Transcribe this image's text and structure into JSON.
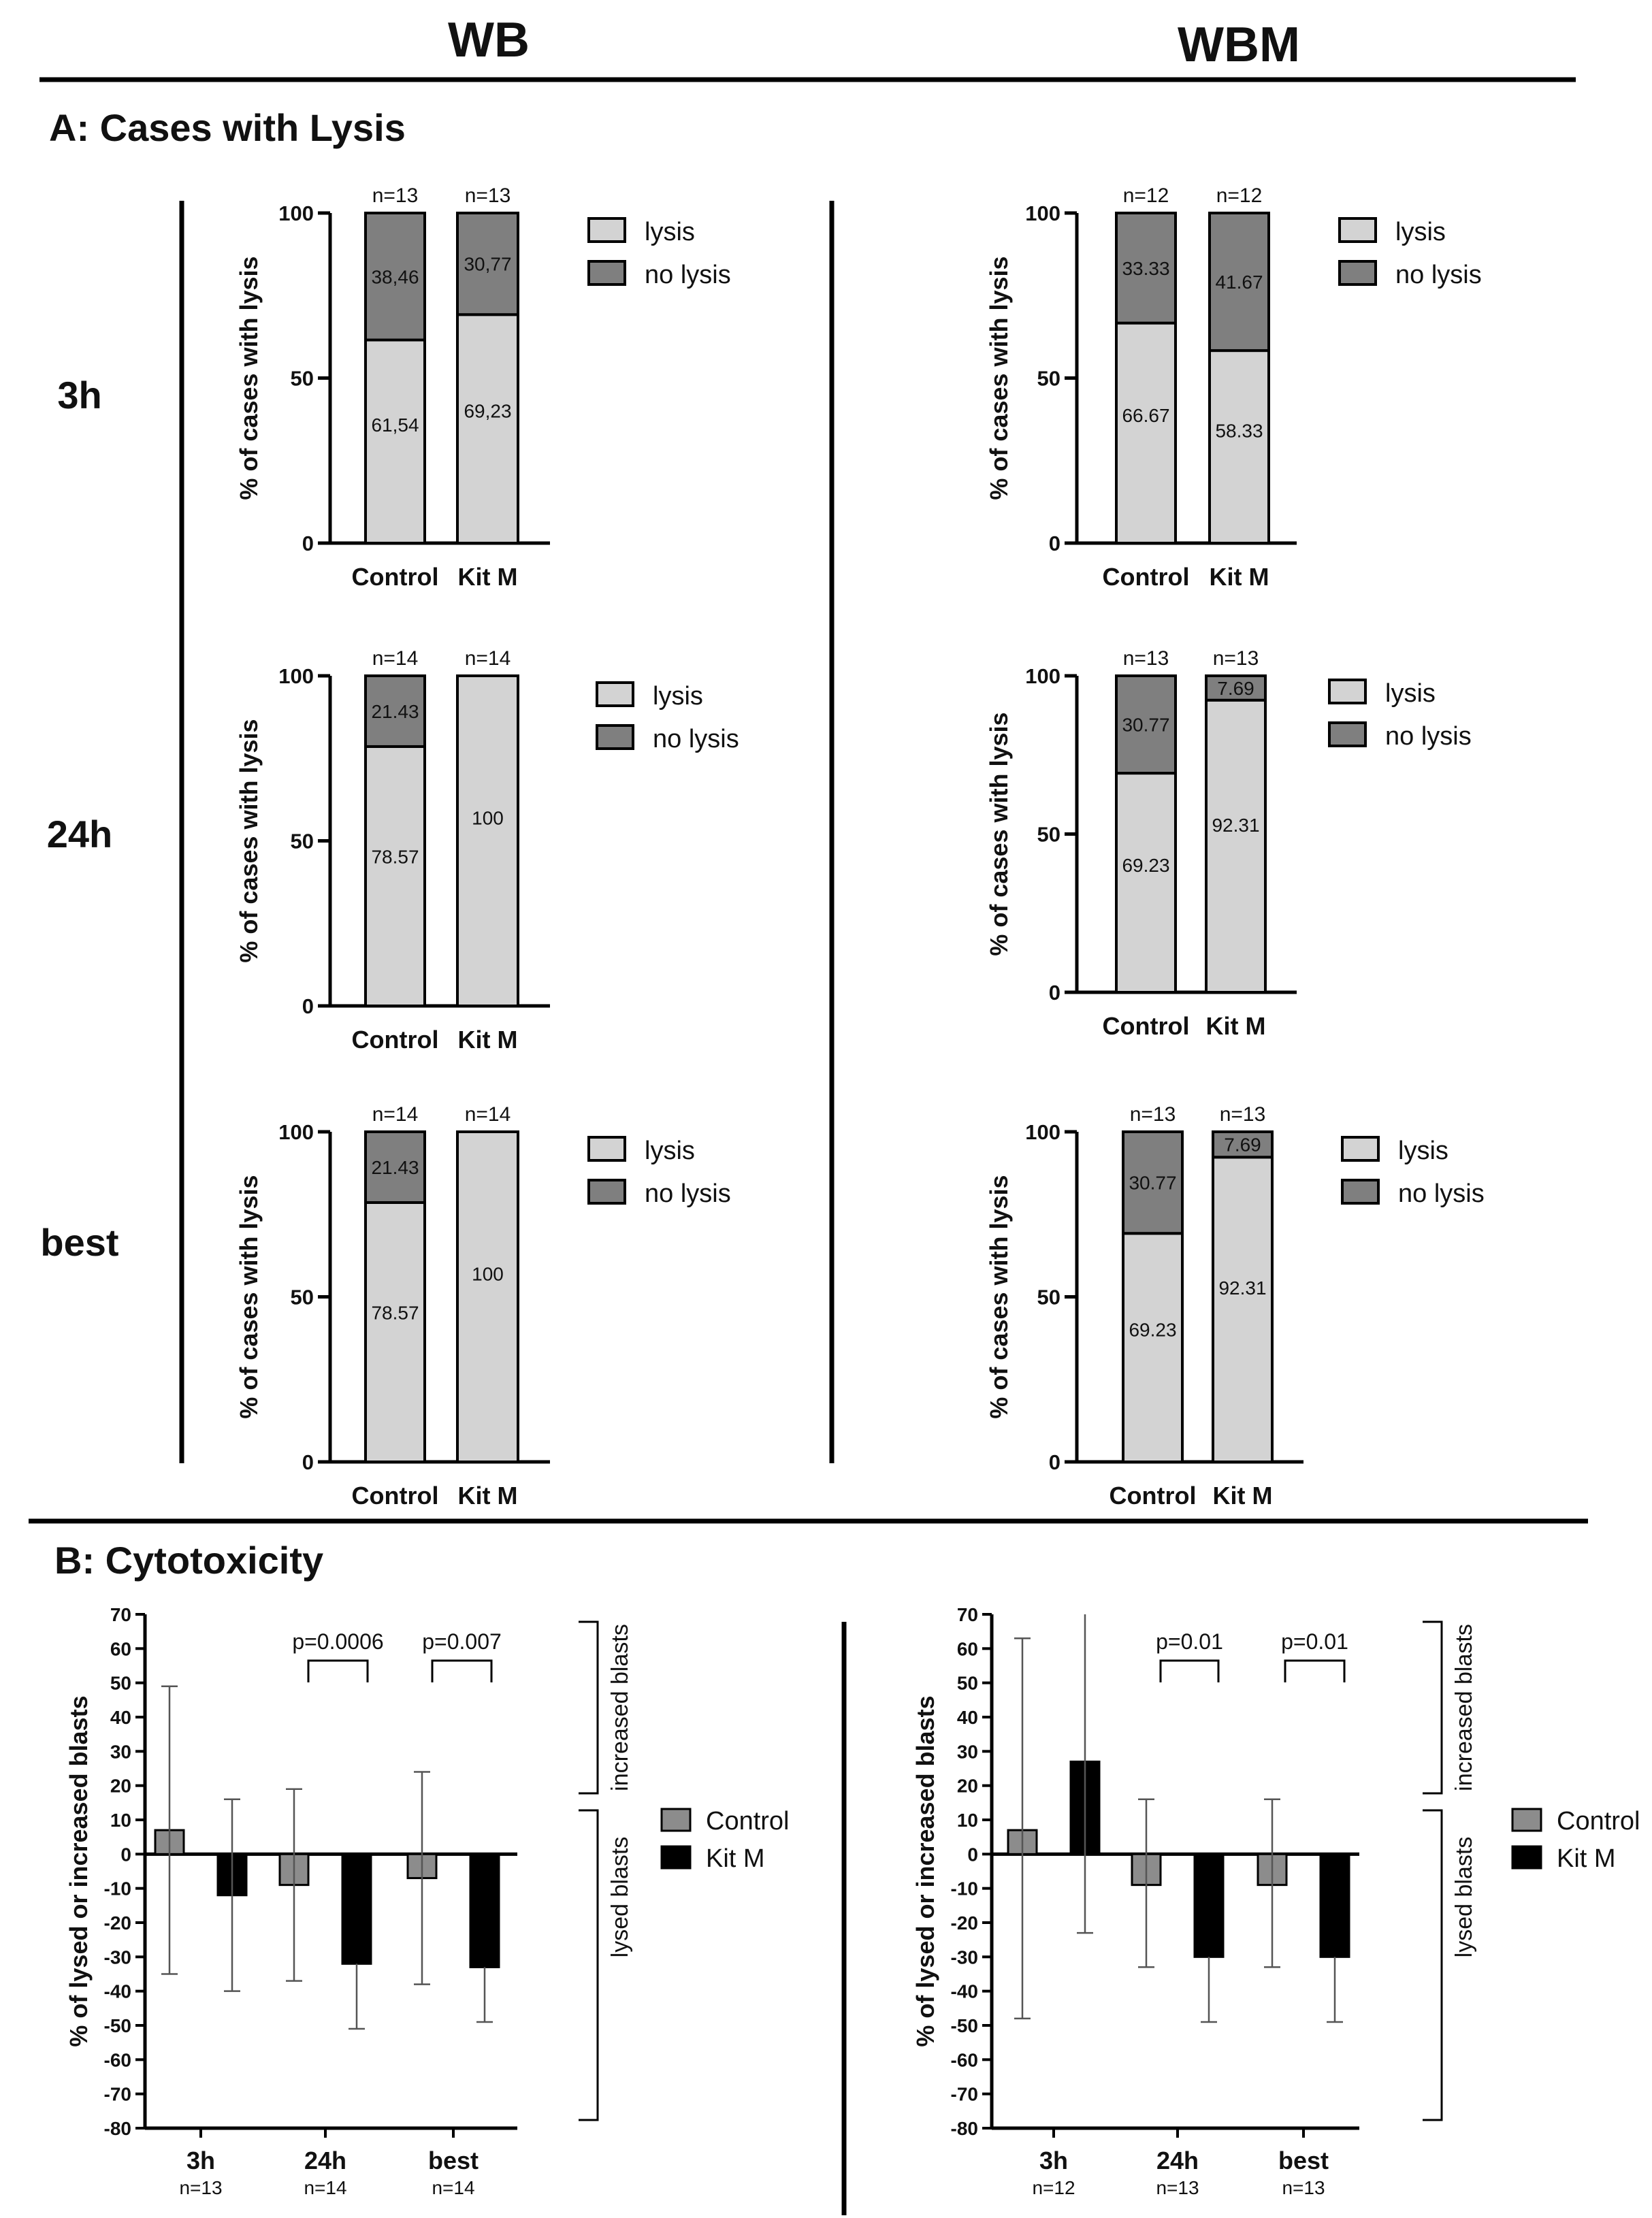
{
  "headers": {
    "left": "WB",
    "right": "WBM"
  },
  "sectionA": {
    "title": "A: Cases with Lysis",
    "rows": [
      "3h",
      "24h",
      "best"
    ]
  },
  "sectionB": {
    "title": "B: Cytotoxicity"
  },
  "chart_data": [
    {
      "id": "A-WB-3h",
      "type": "bar",
      "stacked": true,
      "title": "",
      "ylabel": "% of cases with lysis",
      "ylim": [
        0,
        100
      ],
      "yticks": [
        0,
        50,
        100
      ],
      "categories": [
        "Control",
        "Kit M"
      ],
      "n_labels": [
        "n=13",
        "n=13"
      ],
      "series": [
        {
          "name": "lysis",
          "color": "#d3d3d3",
          "values": [
            61.54,
            69.23
          ],
          "labels": [
            "61,54",
            "69,23"
          ]
        },
        {
          "name": "no lysis",
          "color": "#7f7f7f",
          "values": [
            38.46,
            30.77
          ],
          "labels": [
            "38,46",
            "30,77"
          ]
        }
      ]
    },
    {
      "id": "A-WBM-3h",
      "type": "bar",
      "stacked": true,
      "title": "",
      "ylabel": "% of cases with lysis",
      "ylim": [
        0,
        100
      ],
      "yticks": [
        0,
        50,
        100
      ],
      "categories": [
        "Control",
        "Kit M"
      ],
      "n_labels": [
        "n=12",
        "n=12"
      ],
      "series": [
        {
          "name": "lysis",
          "color": "#d3d3d3",
          "values": [
            66.67,
            58.33
          ],
          "labels": [
            "66.67",
            "58.33"
          ]
        },
        {
          "name": "no lysis",
          "color": "#7f7f7f",
          "values": [
            33.33,
            41.67
          ],
          "labels": [
            "33.33",
            "41.67"
          ]
        }
      ]
    },
    {
      "id": "A-WB-24h",
      "type": "bar",
      "stacked": true,
      "title": "",
      "ylabel": "% of cases with lysis",
      "ylim": [
        0,
        100
      ],
      "yticks": [
        0,
        50,
        100
      ],
      "categories": [
        "Control",
        "Kit M"
      ],
      "n_labels": [
        "n=14",
        "n=14"
      ],
      "series": [
        {
          "name": "lysis",
          "color": "#d3d3d3",
          "values": [
            78.57,
            100
          ],
          "labels": [
            "78.57",
            "100"
          ]
        },
        {
          "name": "no lysis",
          "color": "#7f7f7f",
          "values": [
            21.43,
            0
          ],
          "labels": [
            "21.43",
            ""
          ]
        }
      ]
    },
    {
      "id": "A-WBM-24h",
      "type": "bar",
      "stacked": true,
      "title": "",
      "ylabel": "% of cases with lysis",
      "ylim": [
        0,
        100
      ],
      "yticks": [
        0,
        50,
        100
      ],
      "categories": [
        "Control",
        "Kit M"
      ],
      "n_labels": [
        "n=13",
        "n=13"
      ],
      "series": [
        {
          "name": "lysis",
          "color": "#d3d3d3",
          "values": [
            69.23,
            92.31
          ],
          "labels": [
            "69.23",
            "92.31"
          ]
        },
        {
          "name": "no lysis",
          "color": "#7f7f7f",
          "values": [
            30.77,
            7.69
          ],
          "labels": [
            "30.77",
            "7.69"
          ]
        }
      ]
    },
    {
      "id": "A-WB-best",
      "type": "bar",
      "stacked": true,
      "title": "",
      "ylabel": "% of cases with lysis",
      "ylim": [
        0,
        100
      ],
      "yticks": [
        0,
        50,
        100
      ],
      "categories": [
        "Control",
        "Kit M"
      ],
      "n_labels": [
        "n=14",
        "n=14"
      ],
      "series": [
        {
          "name": "lysis",
          "color": "#d3d3d3",
          "values": [
            78.57,
            100
          ],
          "labels": [
            "78.57",
            "100"
          ]
        },
        {
          "name": "no lysis",
          "color": "#7f7f7f",
          "values": [
            21.43,
            0
          ],
          "labels": [
            "21.43",
            ""
          ]
        }
      ]
    },
    {
      "id": "A-WBM-best",
      "type": "bar",
      "stacked": true,
      "title": "",
      "ylabel": "% of cases with lysis",
      "ylim": [
        0,
        100
      ],
      "yticks": [
        0,
        50,
        100
      ],
      "categories": [
        "Control",
        "Kit M"
      ],
      "n_labels": [
        "n=13",
        "n=13"
      ],
      "series": [
        {
          "name": "lysis",
          "color": "#d3d3d3",
          "values": [
            69.23,
            92.31
          ],
          "labels": [
            "69.23",
            "92.31"
          ]
        },
        {
          "name": "no lysis",
          "color": "#7f7f7f",
          "values": [
            30.77,
            7.69
          ],
          "labels": [
            "30.77",
            "7.69"
          ]
        }
      ]
    },
    {
      "id": "B-WB",
      "type": "bar",
      "title": "",
      "ylabel": "% of lysed or increased blasts",
      "ylim": [
        -80,
        70
      ],
      "yticks": [
        -80,
        -70,
        -60,
        -50,
        -40,
        -30,
        -20,
        -10,
        0,
        10,
        20,
        30,
        40,
        50,
        60,
        70
      ],
      "categories": [
        "3h",
        "24h",
        "best"
      ],
      "n_labels": [
        "n=13",
        "n=14",
        "n=14"
      ],
      "series": [
        {
          "name": "Control",
          "color": "#8c8c8c",
          "values": [
            7,
            -9,
            -7
          ],
          "err_high": [
            49,
            19,
            24
          ],
          "err_low": [
            -35,
            -37,
            -38
          ]
        },
        {
          "name": "Kit M",
          "color": "#000000",
          "values": [
            -12,
            -32,
            -33
          ],
          "err_high": [
            16,
            null,
            null
          ],
          "err_low": [
            -40,
            -51,
            -49
          ]
        }
      ],
      "annotations": [
        "p=0.0006",
        "p=0.007"
      ],
      "bracket_labels": [
        "increased blasts",
        "lysed blasts"
      ]
    },
    {
      "id": "B-WBM",
      "type": "bar",
      "title": "",
      "ylabel": "% of lysed or increased blasts",
      "ylim": [
        -80,
        70
      ],
      "yticks": [
        -80,
        -70,
        -60,
        -50,
        -40,
        -30,
        -20,
        -10,
        0,
        10,
        20,
        30,
        40,
        50,
        60,
        70
      ],
      "categories": [
        "3h",
        "24h",
        "best"
      ],
      "n_labels": [
        "n=12",
        "n=13",
        "n=13"
      ],
      "series": [
        {
          "name": "Control",
          "color": "#8c8c8c",
          "values": [
            7,
            -9,
            -9
          ],
          "err_high": [
            63,
            16,
            16
          ],
          "err_low": [
            -48,
            -33,
            -33
          ]
        },
        {
          "name": "Kit M",
          "color": "#000000",
          "values": [
            27,
            -30,
            -30
          ],
          "err_high": [
            70,
            null,
            null
          ],
          "err_low": [
            -23,
            -49,
            -49
          ]
        }
      ],
      "annotations": [
        "p=0.01",
        "p=0.01"
      ],
      "bracket_labels": [
        "increased blasts",
        "lysed blasts"
      ]
    }
  ]
}
